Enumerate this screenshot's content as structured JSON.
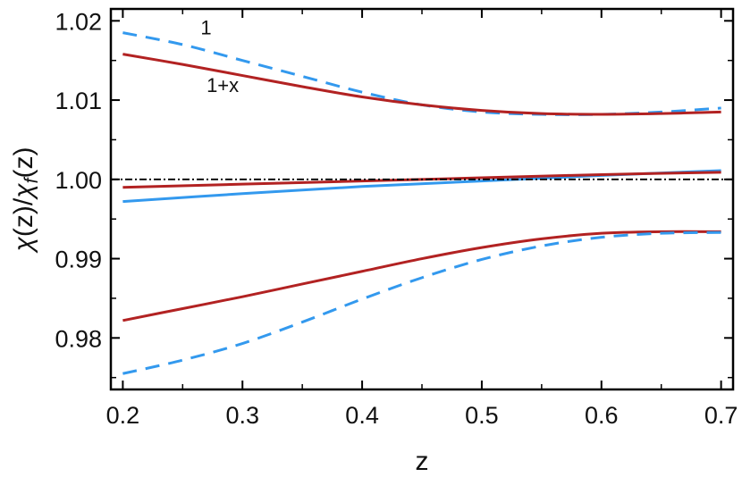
{
  "chart_data": {
    "type": "line",
    "xlabel": "z",
    "ylabel_parts": {
      "chi1": "χ",
      "z1": "(z)/",
      "chi2": "χ",
      "sub": "f",
      "z2": "(z)"
    },
    "xlim": [
      0.19,
      0.71
    ],
    "ylim": [
      0.9735,
      1.0215
    ],
    "x_ticks": [
      0.2,
      0.3,
      0.4,
      0.5,
      0.6,
      0.7
    ],
    "x_tick_labels": [
      "0.2",
      "0.3",
      "0.4",
      "0.5",
      "0.6",
      "0.7"
    ],
    "y_ticks": [
      0.98,
      0.99,
      1.0,
      1.01,
      1.02
    ],
    "y_tick_labels": [
      "0.98",
      "0.99",
      "1.00",
      "1.01",
      "1.02"
    ],
    "grid": false,
    "annotations": [
      {
        "text": "1",
        "x": 0.265,
        "y": 1.0183
      },
      {
        "text": "1+x",
        "x": 0.27,
        "y": 1.011
      }
    ],
    "reference_line": {
      "y": 1.0,
      "style": "dash-dot",
      "color": "#000000"
    },
    "series": [
      {
        "style": "dashed",
        "color": "#3399ee",
        "x": [
          0.2,
          0.25,
          0.3,
          0.35,
          0.4,
          0.45,
          0.5,
          0.55,
          0.6,
          0.65,
          0.7
        ],
        "y": [
          1.0185,
          1.017,
          1.015,
          1.013,
          1.011,
          1.0094,
          1.0085,
          1.0082,
          1.0082,
          1.0085,
          1.009
        ]
      },
      {
        "style": "solid",
        "color": "#b22222",
        "x": [
          0.2,
          0.25,
          0.3,
          0.35,
          0.4,
          0.45,
          0.5,
          0.55,
          0.6,
          0.65,
          0.7
        ],
        "y": [
          1.0158,
          1.0145,
          1.0131,
          1.0117,
          1.0104,
          1.0094,
          1.0087,
          1.0083,
          1.0082,
          1.0083,
          1.0085
        ]
      },
      {
        "style": "solid",
        "color": "#3399ee",
        "x": [
          0.2,
          0.3,
          0.4,
          0.5,
          0.6,
          0.7
        ],
        "y": [
          0.9972,
          0.9982,
          0.9991,
          0.9998,
          1.0005,
          1.0011
        ]
      },
      {
        "style": "solid",
        "color": "#b22222",
        "x": [
          0.2,
          0.3,
          0.4,
          0.5,
          0.6,
          0.7
        ],
        "y": [
          0.999,
          0.9994,
          0.9998,
          1.0002,
          1.0006,
          1.0009
        ]
      },
      {
        "style": "solid",
        "color": "#b22222",
        "x": [
          0.2,
          0.25,
          0.3,
          0.35,
          0.4,
          0.45,
          0.5,
          0.55,
          0.6,
          0.65,
          0.7
        ],
        "y": [
          0.9822,
          0.9837,
          0.9852,
          0.9868,
          0.9884,
          0.99,
          0.9914,
          0.9925,
          0.9932,
          0.9934,
          0.9934
        ]
      },
      {
        "style": "dashed",
        "color": "#3399ee",
        "x": [
          0.2,
          0.25,
          0.3,
          0.35,
          0.4,
          0.45,
          0.5,
          0.55,
          0.6,
          0.65,
          0.7
        ],
        "y": [
          0.9755,
          0.9772,
          0.9793,
          0.982,
          0.9849,
          0.9876,
          0.9899,
          0.9916,
          0.9927,
          0.9932,
          0.9933
        ]
      }
    ]
  }
}
